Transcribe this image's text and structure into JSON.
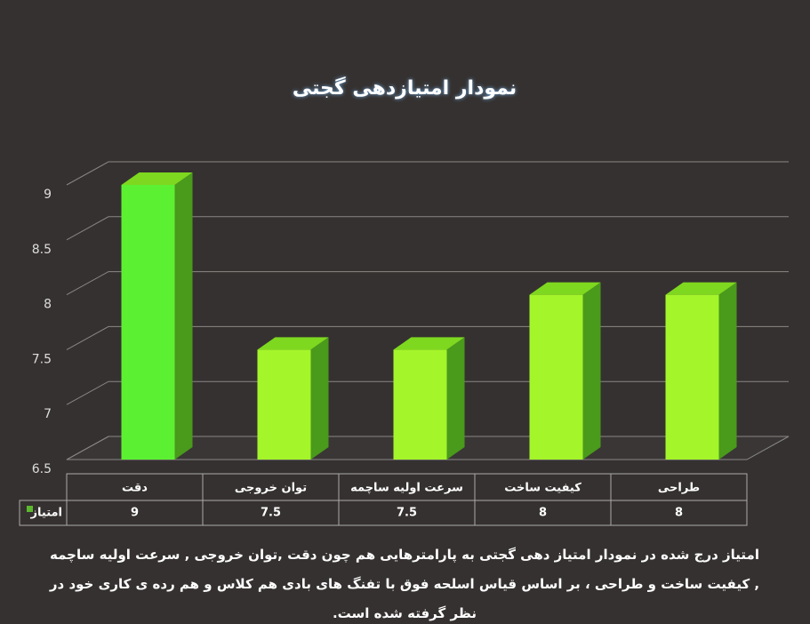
{
  "chart_data": {
    "type": "bar3d",
    "title": "نمودار امتیازدهی گجتی",
    "categories": [
      "دقت",
      "توان خروجی",
      "سرعت اولیه ساچمه",
      "کیفیت ساخت",
      "طراحی"
    ],
    "series": [
      {
        "name": "امتیاز",
        "color": "#5cb82e",
        "values": [
          9,
          7.5,
          7.5,
          8,
          8
        ]
      }
    ],
    "point_colors": [
      "#5cf032",
      "#a4f52a",
      "#a4f52a",
      "#a4f52a",
      "#a4f52a"
    ],
    "ylim": [
      6.5,
      9
    ],
    "yticks": [
      6.5,
      7,
      7.5,
      8,
      8.5,
      9
    ],
    "grid": true,
    "caption": "امتیاز درج شده در نمودار امتیاز دهی گجتی  به پارامترهایی هم چون دقت ,توان خروجی , سرعت اولیه ساچمه , کیفیت ساخت و طراحی ، بر اساس قیاس اسلحه فوق با تفنگ های بادی هم کلاس و هم رده ی کاری خود در نظر گرفته شده است."
  }
}
